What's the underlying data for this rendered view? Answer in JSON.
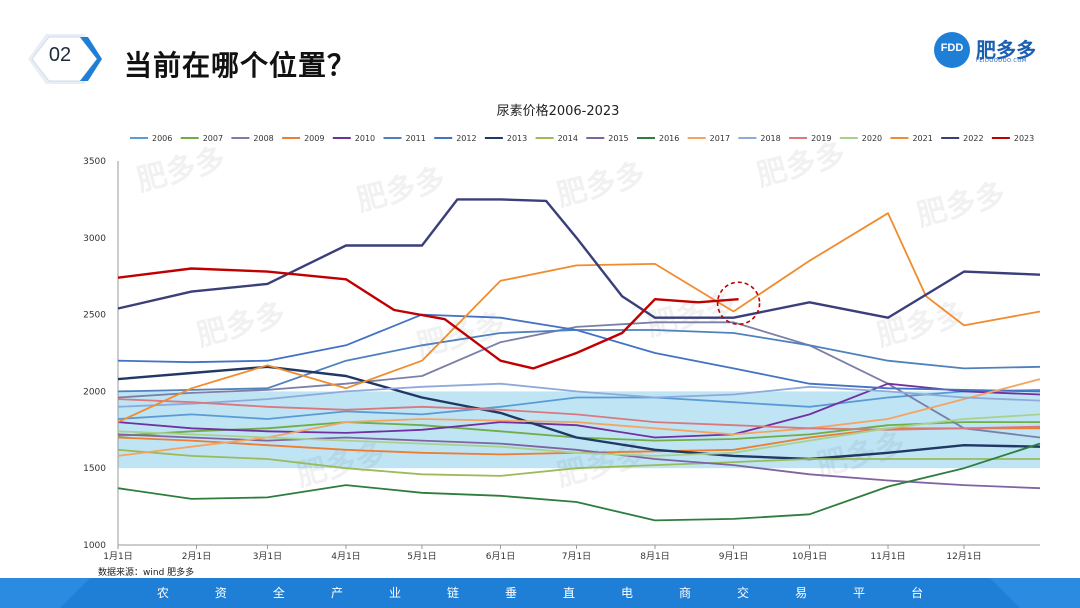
{
  "slide": {
    "badge_number": "02",
    "heading": "当前在哪个位置？",
    "logo": {
      "mark_text": "FDD",
      "name": "肥多多",
      "subtext": "FEIDOODOO.COM"
    },
    "source_note": "数据来源：wind  肥多多",
    "slogan_chars": [
      "农",
      "资",
      "全",
      "产",
      "业",
      "链",
      "垂",
      "直",
      "电",
      "商",
      "交",
      "易",
      "平",
      "台"
    ],
    "watermark_text": "肥多多"
  },
  "chart_data": {
    "type": "line",
    "title": "尿素价格2006-2023",
    "xlabel": "",
    "ylabel": "",
    "x_domain": [
      1,
      365
    ],
    "x_ticks": [
      {
        "label": "1月1日",
        "day": 1
      },
      {
        "label": "2月1日",
        "day": 32
      },
      {
        "label": "3月1日",
        "day": 60
      },
      {
        "label": "4月1日",
        "day": 91
      },
      {
        "label": "5月1日",
        "day": 121
      },
      {
        "label": "6月1日",
        "day": 152
      },
      {
        "label": "7月1日",
        "day": 182
      },
      {
        "label": "8月1日",
        "day": 213
      },
      {
        "label": "9月1日",
        "day": 244
      },
      {
        "label": "10月1日",
        "day": 274
      },
      {
        "label": "11月1日",
        "day": 305
      },
      {
        "label": "12月1日",
        "day": 335
      }
    ],
    "ylim": [
      1000,
      3500
    ],
    "y_ticks": [
      1000,
      1500,
      2000,
      2500,
      3000,
      3500
    ],
    "highlight_band": [
      1500,
      2000
    ],
    "highlight_color": "#a9dcf2",
    "callout": {
      "day": 246,
      "value": 2600,
      "note": "current position"
    },
    "series": [
      {
        "name": "2006",
        "color": "#5b9bd5",
        "points": [
          [
            1,
            1820
          ],
          [
            30,
            1850
          ],
          [
            60,
            1820
          ],
          [
            91,
            1870
          ],
          [
            121,
            1850
          ],
          [
            152,
            1900
          ],
          [
            182,
            1960
          ],
          [
            213,
            1960
          ],
          [
            244,
            1930
          ],
          [
            274,
            1900
          ],
          [
            305,
            1960
          ],
          [
            335,
            2000
          ],
          [
            365,
            2010
          ]
        ]
      },
      {
        "name": "2007",
        "color": "#70ad47",
        "points": [
          [
            1,
            1710
          ],
          [
            30,
            1740
          ],
          [
            60,
            1760
          ],
          [
            91,
            1800
          ],
          [
            121,
            1780
          ],
          [
            152,
            1740
          ],
          [
            182,
            1700
          ],
          [
            213,
            1680
          ],
          [
            244,
            1690
          ],
          [
            274,
            1720
          ],
          [
            305,
            1780
          ],
          [
            335,
            1800
          ],
          [
            365,
            1800
          ]
        ]
      },
      {
        "name": "2008",
        "color": "#7b7fa8",
        "points": [
          [
            1,
            1960
          ],
          [
            30,
            1990
          ],
          [
            60,
            2010
          ],
          [
            91,
            2050
          ],
          [
            121,
            2100
          ],
          [
            152,
            2320
          ],
          [
            182,
            2420
          ],
          [
            213,
            2450
          ],
          [
            244,
            2450
          ],
          [
            274,
            2300
          ],
          [
            305,
            2050
          ],
          [
            335,
            1760
          ],
          [
            365,
            1700
          ]
        ]
      },
      {
        "name": "2009",
        "color": "#ed7d31",
        "points": [
          [
            1,
            1700
          ],
          [
            30,
            1680
          ],
          [
            60,
            1650
          ],
          [
            91,
            1620
          ],
          [
            121,
            1600
          ],
          [
            152,
            1590
          ],
          [
            182,
            1600
          ],
          [
            213,
            1610
          ],
          [
            244,
            1620
          ],
          [
            274,
            1700
          ],
          [
            305,
            1760
          ],
          [
            335,
            1760
          ],
          [
            365,
            1760
          ]
        ]
      },
      {
        "name": "2010",
        "color": "#7030a0",
        "points": [
          [
            1,
            1800
          ],
          [
            30,
            1760
          ],
          [
            60,
            1740
          ],
          [
            91,
            1730
          ],
          [
            121,
            1750
          ],
          [
            152,
            1800
          ],
          [
            182,
            1780
          ],
          [
            213,
            1700
          ],
          [
            244,
            1720
          ],
          [
            274,
            1850
          ],
          [
            305,
            2050
          ],
          [
            335,
            2000
          ],
          [
            365,
            1980
          ]
        ]
      },
      {
        "name": "2011",
        "color": "#4f81bd",
        "points": [
          [
            1,
            2000
          ],
          [
            30,
            2010
          ],
          [
            60,
            2020
          ],
          [
            91,
            2200
          ],
          [
            121,
            2300
          ],
          [
            152,
            2380
          ],
          [
            182,
            2400
          ],
          [
            213,
            2400
          ],
          [
            244,
            2380
          ],
          [
            274,
            2300
          ],
          [
            305,
            2200
          ],
          [
            335,
            2150
          ],
          [
            365,
            2160
          ]
        ]
      },
      {
        "name": "2012",
        "color": "#4472c4",
        "points": [
          [
            1,
            2200
          ],
          [
            30,
            2190
          ],
          [
            60,
            2200
          ],
          [
            91,
            2300
          ],
          [
            121,
            2500
          ],
          [
            152,
            2480
          ],
          [
            182,
            2400
          ],
          [
            213,
            2250
          ],
          [
            244,
            2150
          ],
          [
            274,
            2050
          ],
          [
            305,
            2020
          ],
          [
            335,
            2010
          ],
          [
            365,
            2000
          ]
        ]
      },
      {
        "name": "2013",
        "color": "#1f3864",
        "points": [
          [
            1,
            2080
          ],
          [
            30,
            2120
          ],
          [
            60,
            2160
          ],
          [
            91,
            2100
          ],
          [
            121,
            1960
          ],
          [
            152,
            1860
          ],
          [
            182,
            1700
          ],
          [
            213,
            1620
          ],
          [
            244,
            1580
          ],
          [
            274,
            1560
          ],
          [
            305,
            1600
          ],
          [
            335,
            1650
          ],
          [
            365,
            1640
          ]
        ]
      },
      {
        "name": "2014",
        "color": "#9bbb59",
        "points": [
          [
            1,
            1620
          ],
          [
            30,
            1580
          ],
          [
            60,
            1560
          ],
          [
            91,
            1500
          ],
          [
            121,
            1460
          ],
          [
            152,
            1450
          ],
          [
            182,
            1500
          ],
          [
            213,
            1520
          ],
          [
            244,
            1540
          ],
          [
            274,
            1560
          ],
          [
            305,
            1560
          ],
          [
            335,
            1560
          ],
          [
            365,
            1560
          ]
        ]
      },
      {
        "name": "2015",
        "color": "#8064a2",
        "points": [
          [
            1,
            1720
          ],
          [
            30,
            1700
          ],
          [
            60,
            1680
          ],
          [
            91,
            1700
          ],
          [
            121,
            1680
          ],
          [
            152,
            1660
          ],
          [
            182,
            1620
          ],
          [
            213,
            1560
          ],
          [
            244,
            1520
          ],
          [
            274,
            1460
          ],
          [
            305,
            1420
          ],
          [
            335,
            1390
          ],
          [
            365,
            1370
          ]
        ]
      },
      {
        "name": "2016",
        "color": "#2f7d3e",
        "points": [
          [
            1,
            1370
          ],
          [
            30,
            1300
          ],
          [
            60,
            1310
          ],
          [
            91,
            1390
          ],
          [
            121,
            1340
          ],
          [
            152,
            1320
          ],
          [
            182,
            1280
          ],
          [
            213,
            1160
          ],
          [
            244,
            1170
          ],
          [
            274,
            1200
          ],
          [
            305,
            1380
          ],
          [
            335,
            1500
          ],
          [
            365,
            1660
          ]
        ]
      },
      {
        "name": "2017",
        "color": "#f4a460",
        "points": [
          [
            1,
            1580
          ],
          [
            30,
            1640
          ],
          [
            60,
            1700
          ],
          [
            91,
            1800
          ],
          [
            121,
            1820
          ],
          [
            152,
            1810
          ],
          [
            182,
            1800
          ],
          [
            213,
            1760
          ],
          [
            244,
            1720
          ],
          [
            274,
            1760
          ],
          [
            305,
            1820
          ],
          [
            335,
            1950
          ],
          [
            365,
            2080
          ]
        ]
      },
      {
        "name": "2018",
        "color": "#8eaadb",
        "points": [
          [
            1,
            1900
          ],
          [
            30,
            1920
          ],
          [
            60,
            1950
          ],
          [
            91,
            2000
          ],
          [
            121,
            2030
          ],
          [
            152,
            2050
          ],
          [
            182,
            2000
          ],
          [
            213,
            1960
          ],
          [
            244,
            1980
          ],
          [
            274,
            2030
          ],
          [
            305,
            2000
          ],
          [
            335,
            1960
          ],
          [
            365,
            1940
          ]
        ]
      },
      {
        "name": "2019",
        "color": "#d9797e",
        "points": [
          [
            1,
            1950
          ],
          [
            30,
            1930
          ],
          [
            60,
            1900
          ],
          [
            91,
            1880
          ],
          [
            121,
            1900
          ],
          [
            152,
            1880
          ],
          [
            182,
            1850
          ],
          [
            213,
            1800
          ],
          [
            244,
            1780
          ],
          [
            274,
            1760
          ],
          [
            305,
            1750
          ],
          [
            335,
            1760
          ],
          [
            365,
            1770
          ]
        ]
      },
      {
        "name": "2020",
        "color": "#a9d18e",
        "points": [
          [
            1,
            1740
          ],
          [
            30,
            1720
          ],
          [
            60,
            1700
          ],
          [
            91,
            1680
          ],
          [
            121,
            1660
          ],
          [
            152,
            1640
          ],
          [
            182,
            1600
          ],
          [
            213,
            1580
          ],
          [
            244,
            1600
          ],
          [
            274,
            1680
          ],
          [
            305,
            1760
          ],
          [
            335,
            1820
          ],
          [
            365,
            1850
          ]
        ]
      },
      {
        "name": "2021",
        "color": "#f08c2e",
        "points": [
          [
            1,
            1800
          ],
          [
            30,
            2020
          ],
          [
            60,
            2170
          ],
          [
            91,
            2020
          ],
          [
            121,
            2200
          ],
          [
            152,
            2720
          ],
          [
            182,
            2820
          ],
          [
            213,
            2830
          ],
          [
            244,
            2520
          ],
          [
            274,
            2850
          ],
          [
            305,
            3160
          ],
          [
            320,
            2620
          ],
          [
            335,
            2430
          ],
          [
            365,
            2520
          ]
        ]
      },
      {
        "name": "2022",
        "color": "#3a3f7a",
        "points": [
          [
            1,
            2540
          ],
          [
            30,
            2650
          ],
          [
            60,
            2700
          ],
          [
            91,
            2950
          ],
          [
            121,
            2950
          ],
          [
            135,
            3250
          ],
          [
            152,
            3250
          ],
          [
            170,
            3240
          ],
          [
            182,
            3000
          ],
          [
            200,
            2620
          ],
          [
            213,
            2480
          ],
          [
            244,
            2480
          ],
          [
            274,
            2580
          ],
          [
            305,
            2480
          ],
          [
            335,
            2780
          ],
          [
            365,
            2760
          ]
        ]
      },
      {
        "name": "2023",
        "color": "#c00000",
        "points": [
          [
            1,
            2740
          ],
          [
            30,
            2800
          ],
          [
            60,
            2780
          ],
          [
            91,
            2730
          ],
          [
            110,
            2530
          ],
          [
            130,
            2470
          ],
          [
            152,
            2200
          ],
          [
            165,
            2150
          ],
          [
            182,
            2250
          ],
          [
            200,
            2380
          ],
          [
            213,
            2600
          ],
          [
            230,
            2580
          ],
          [
            246,
            2600
          ]
        ]
      }
    ]
  }
}
